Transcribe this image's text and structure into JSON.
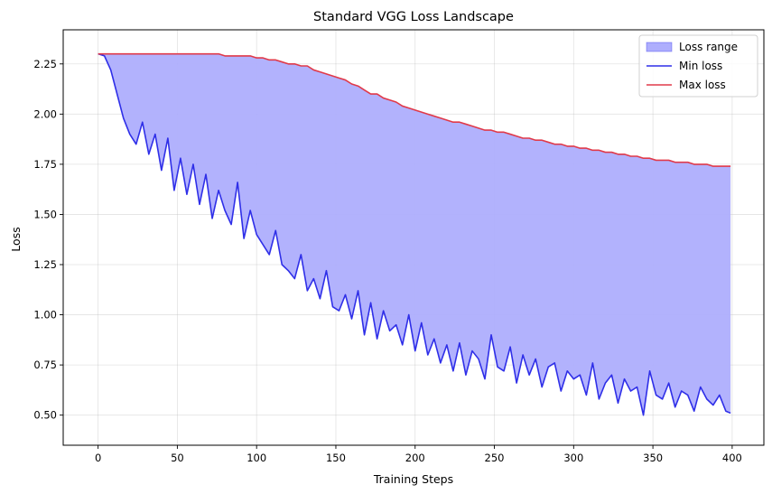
{
  "chart_data": {
    "type": "area",
    "title": "Standard VGG Loss Landscape",
    "xlabel": "Training Steps",
    "ylabel": "Loss",
    "xlim": [
      -22,
      420
    ],
    "ylim": [
      0.35,
      2.42
    ],
    "xticks": [
      0,
      50,
      100,
      150,
      200,
      250,
      300,
      350,
      400
    ],
    "yticks": [
      0.5,
      0.75,
      1.0,
      1.25,
      1.5,
      1.75,
      2.0,
      2.25
    ],
    "ytick_labels": [
      "0.50",
      "0.75",
      "1.00",
      "1.25",
      "1.50",
      "1.75",
      "2.00",
      "2.25"
    ],
    "grid": true,
    "legend_position": "top-right",
    "colors": {
      "fill": "#aeaefd",
      "min_line": "#2f2fe8",
      "max_line": "#e03a4a"
    },
    "legend": [
      {
        "label": "Loss range",
        "kind": "patch"
      },
      {
        "label": "Min loss",
        "kind": "line-min"
      },
      {
        "label": "Max loss",
        "kind": "line-max"
      }
    ],
    "x": [
      0,
      4,
      8,
      12,
      16,
      20,
      24,
      28,
      32,
      36,
      40,
      44,
      48,
      52,
      56,
      60,
      64,
      68,
      72,
      76,
      80,
      84,
      88,
      92,
      96,
      100,
      104,
      108,
      112,
      116,
      120,
      124,
      128,
      132,
      136,
      140,
      144,
      148,
      152,
      156,
      160,
      164,
      168,
      172,
      176,
      180,
      184,
      188,
      192,
      196,
      200,
      204,
      208,
      212,
      216,
      220,
      224,
      228,
      232,
      236,
      240,
      244,
      248,
      252,
      256,
      260,
      264,
      268,
      272,
      276,
      280,
      284,
      288,
      292,
      296,
      300,
      304,
      308,
      312,
      316,
      320,
      324,
      328,
      332,
      336,
      340,
      344,
      348,
      352,
      356,
      360,
      364,
      368,
      372,
      376,
      380,
      384,
      388,
      392,
      396,
      399
    ],
    "series": [
      {
        "name": "Min loss",
        "values": [
          2.3,
          2.29,
          2.22,
          2.1,
          1.98,
          1.9,
          1.85,
          1.96,
          1.8,
          1.9,
          1.72,
          1.88,
          1.62,
          1.78,
          1.6,
          1.75,
          1.55,
          1.7,
          1.48,
          1.62,
          1.52,
          1.45,
          1.66,
          1.38,
          1.52,
          1.4,
          1.35,
          1.3,
          1.42,
          1.25,
          1.22,
          1.18,
          1.3,
          1.12,
          1.18,
          1.08,
          1.22,
          1.04,
          1.02,
          1.1,
          0.98,
          1.12,
          0.9,
          1.06,
          0.88,
          1.02,
          0.92,
          0.95,
          0.85,
          1.0,
          0.82,
          0.96,
          0.8,
          0.88,
          0.76,
          0.85,
          0.72,
          0.86,
          0.7,
          0.82,
          0.78,
          0.68,
          0.9,
          0.74,
          0.72,
          0.84,
          0.66,
          0.8,
          0.7,
          0.78,
          0.64,
          0.74,
          0.76,
          0.62,
          0.72,
          0.68,
          0.7,
          0.6,
          0.76,
          0.58,
          0.66,
          0.7,
          0.56,
          0.68,
          0.62,
          0.64,
          0.5,
          0.72,
          0.6,
          0.58,
          0.66,
          0.54,
          0.62,
          0.6,
          0.52,
          0.64,
          0.58,
          0.55,
          0.6,
          0.52,
          0.51
        ]
      },
      {
        "name": "Max loss",
        "values": [
          2.3,
          2.3,
          2.3,
          2.3,
          2.3,
          2.3,
          2.3,
          2.3,
          2.3,
          2.3,
          2.3,
          2.3,
          2.3,
          2.3,
          2.3,
          2.3,
          2.3,
          2.3,
          2.3,
          2.3,
          2.29,
          2.29,
          2.29,
          2.29,
          2.29,
          2.28,
          2.28,
          2.27,
          2.27,
          2.26,
          2.25,
          2.25,
          2.24,
          2.24,
          2.22,
          2.21,
          2.2,
          2.19,
          2.18,
          2.17,
          2.15,
          2.14,
          2.12,
          2.1,
          2.1,
          2.08,
          2.07,
          2.06,
          2.04,
          2.03,
          2.02,
          2.01,
          2.0,
          1.99,
          1.98,
          1.97,
          1.96,
          1.96,
          1.95,
          1.94,
          1.93,
          1.92,
          1.92,
          1.91,
          1.91,
          1.9,
          1.89,
          1.88,
          1.88,
          1.87,
          1.87,
          1.86,
          1.85,
          1.85,
          1.84,
          1.84,
          1.83,
          1.83,
          1.82,
          1.82,
          1.81,
          1.81,
          1.8,
          1.8,
          1.79,
          1.79,
          1.78,
          1.78,
          1.77,
          1.77,
          1.77,
          1.76,
          1.76,
          1.76,
          1.75,
          1.75,
          1.75,
          1.74,
          1.74,
          1.74,
          1.74
        ]
      }
    ]
  }
}
